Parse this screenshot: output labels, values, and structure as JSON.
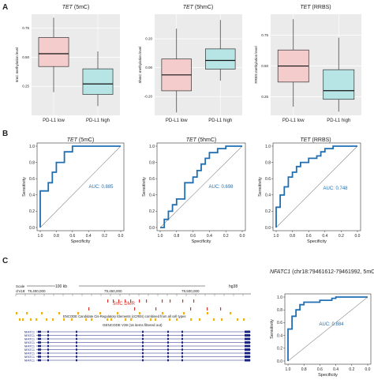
{
  "panel_labels": {
    "a": "A",
    "b": "B",
    "c": "C"
  },
  "colors": {
    "low": "#f4cccc",
    "high": "#b7e4e4",
    "roc": "#1f6fb2",
    "auc_text": "#1f6fb2",
    "panel_bg": "#ebebeb",
    "grid": "#ffffff",
    "dmr": "#d9342b",
    "ccre": "#f2b400",
    "gene": "#1a237e"
  },
  "chart_data": [
    {
      "type": "box",
      "id": "box_5mc",
      "title_italic": "TET",
      "title_rest": " (5mC)",
      "ylabel": "5mC methylation level",
      "categories": [
        "PD-L1 low",
        "PD-L1 high"
      ],
      "yticks": [
        0.25,
        0.5,
        0.75
      ],
      "ylim": [
        0.0,
        0.87
      ],
      "boxes": [
        {
          "min": 0.2,
          "q1": 0.42,
          "median": 0.53,
          "q3": 0.67,
          "max": 0.84
        },
        {
          "min": 0.08,
          "q1": 0.18,
          "median": 0.27,
          "q3": 0.4,
          "max": 0.55
        }
      ]
    },
    {
      "type": "box",
      "id": "box_5hmc",
      "title_italic": "TET",
      "title_rest": " (5hmC)",
      "ylabel": "5hmC methylation level",
      "categories": [
        "PD-L1 low",
        "PD-L1 high"
      ],
      "yticks": [
        -0.2,
        0.0,
        0.2
      ],
      "ylim": [
        -0.33,
        0.37
      ],
      "boxes": [
        {
          "min": -0.31,
          "q1": -0.16,
          "median": -0.05,
          "q3": 0.06,
          "max": 0.27
        },
        {
          "min": -0.09,
          "q1": -0.01,
          "median": 0.05,
          "q3": 0.13,
          "max": 0.33
        }
      ]
    },
    {
      "type": "box",
      "id": "box_rrbs",
      "title_italic": "TET",
      "title_rest": " (RRBS)",
      "ylabel": "RRBS methylation level",
      "categories": [
        "PD-L1 low",
        "PD-L1 high"
      ],
      "yticks": [
        0.25,
        0.5,
        0.75
      ],
      "ylim": [
        0.1,
        0.92
      ],
      "boxes": [
        {
          "min": 0.17,
          "q1": 0.37,
          "median": 0.5,
          "q3": 0.63,
          "max": 0.88
        },
        {
          "min": 0.13,
          "q1": 0.23,
          "median": 0.3,
          "q3": 0.47,
          "max": 0.73
        }
      ]
    },
    {
      "type": "line",
      "id": "roc_5mc",
      "title_italic": "TET",
      "title_rest": " (5mC)",
      "xlabel": "Specificity",
      "ylabel": "Sensitivity",
      "auc": "AUC: 0.885",
      "xticks": [
        "1.0",
        "0.8",
        "0.6",
        "0.4",
        "0.2",
        "0.0"
      ],
      "yticks": [
        "0.0",
        "0.2",
        "0.4",
        "0.6",
        "0.8",
        "1.0"
      ],
      "x": [
        1.0,
        1.0,
        0.9,
        0.9,
        0.85,
        0.85,
        0.8,
        0.8,
        0.7,
        0.7,
        0.6,
        0.6,
        0.5,
        0.4,
        0.0
      ],
      "y": [
        0.0,
        0.45,
        0.45,
        0.55,
        0.55,
        0.68,
        0.68,
        0.8,
        0.8,
        0.93,
        0.93,
        1.0,
        1.0,
        1.0,
        1.0
      ]
    },
    {
      "type": "line",
      "id": "roc_5hmc",
      "title_italic": "TET",
      "title_rest": " (5hmC)",
      "xlabel": "Specificity",
      "ylabel": "Sensitivity",
      "auc": "AUC: 0.698",
      "xticks": [
        "1.0",
        "0.8",
        "0.6",
        "0.4",
        "0.2",
        "0.0"
      ],
      "yticks": [
        "0.0",
        "0.2",
        "0.4",
        "0.6",
        "0.8",
        "1.0"
      ],
      "x": [
        1.0,
        0.95,
        0.95,
        0.9,
        0.9,
        0.85,
        0.85,
        0.8,
        0.8,
        0.7,
        0.7,
        0.6,
        0.6,
        0.55,
        0.55,
        0.5,
        0.5,
        0.45,
        0.45,
        0.4,
        0.4,
        0.3,
        0.3,
        0.2,
        0.2,
        0.0
      ],
      "y": [
        0.0,
        0.0,
        0.1,
        0.1,
        0.2,
        0.2,
        0.28,
        0.28,
        0.35,
        0.35,
        0.55,
        0.55,
        0.62,
        0.62,
        0.7,
        0.7,
        0.78,
        0.78,
        0.85,
        0.85,
        0.92,
        0.92,
        0.97,
        0.97,
        1.0,
        1.0
      ]
    },
    {
      "type": "line",
      "id": "roc_rrbs",
      "title_italic": "TET",
      "title_rest": " (RRBS)",
      "xlabel": "Specificity",
      "ylabel": "Sensitivity",
      "auc": "AUC: 0.748",
      "xticks": [
        "1.0",
        "0.8",
        "0.6",
        "0.4",
        "0.2",
        "0.0"
      ],
      "yticks": [
        "0.0",
        "0.2",
        "0.4",
        "0.6",
        "0.8",
        "1.0"
      ],
      "x": [
        1.0,
        1.0,
        0.95,
        0.95,
        0.9,
        0.9,
        0.85,
        0.85,
        0.8,
        0.8,
        0.75,
        0.75,
        0.7,
        0.7,
        0.6,
        0.6,
        0.5,
        0.5,
        0.45,
        0.45,
        0.4,
        0.4,
        0.3,
        0.3,
        0.0
      ],
      "y": [
        0.0,
        0.25,
        0.25,
        0.4,
        0.4,
        0.5,
        0.5,
        0.62,
        0.62,
        0.68,
        0.68,
        0.75,
        0.75,
        0.8,
        0.8,
        0.85,
        0.85,
        0.88,
        0.88,
        0.93,
        0.93,
        0.97,
        0.97,
        1.0,
        1.0
      ]
    },
    {
      "type": "line",
      "id": "roc_nfatc1",
      "title_italic": "NFATC1",
      "title_rest": " (chr18:79461612-79461992, 5mC)",
      "xlabel": "Specificity",
      "ylabel": "Sensitivity",
      "auc": "AUC: 0.884",
      "xticks": [
        "1.0",
        "0.8",
        "0.6",
        "0.4",
        "0.2",
        "0.0"
      ],
      "yticks": [
        "0.0",
        "0.2",
        "0.4",
        "0.6",
        "0.8",
        "1.0"
      ],
      "x": [
        1.0,
        1.0,
        0.95,
        0.95,
        0.9,
        0.9,
        0.85,
        0.85,
        0.8,
        0.8,
        0.6,
        0.6,
        0.45,
        0.45,
        0.4,
        0.4,
        0.0
      ],
      "y": [
        0.0,
        0.5,
        0.5,
        0.7,
        0.7,
        0.8,
        0.8,
        0.88,
        0.88,
        0.92,
        0.92,
        0.95,
        0.95,
        0.98,
        0.98,
        1.0,
        1.0
      ]
    }
  ],
  "browser": {
    "scale_label": "Scale",
    "chr_label": "chr18:",
    "scale_value": "100 kb",
    "assembly": "hg38",
    "positions": [
      "79,400,000",
      "79,450,000",
      "79,500,000"
    ],
    "dmr_label": "5mC DMR",
    "ccre_label": "ENCODE Candidate Cis-Regulatory Elements (cCREs) combined from all cell types",
    "gencode_label": "GENCODE V39 (16 items filtered out)",
    "gene_label": "NFATC1"
  }
}
